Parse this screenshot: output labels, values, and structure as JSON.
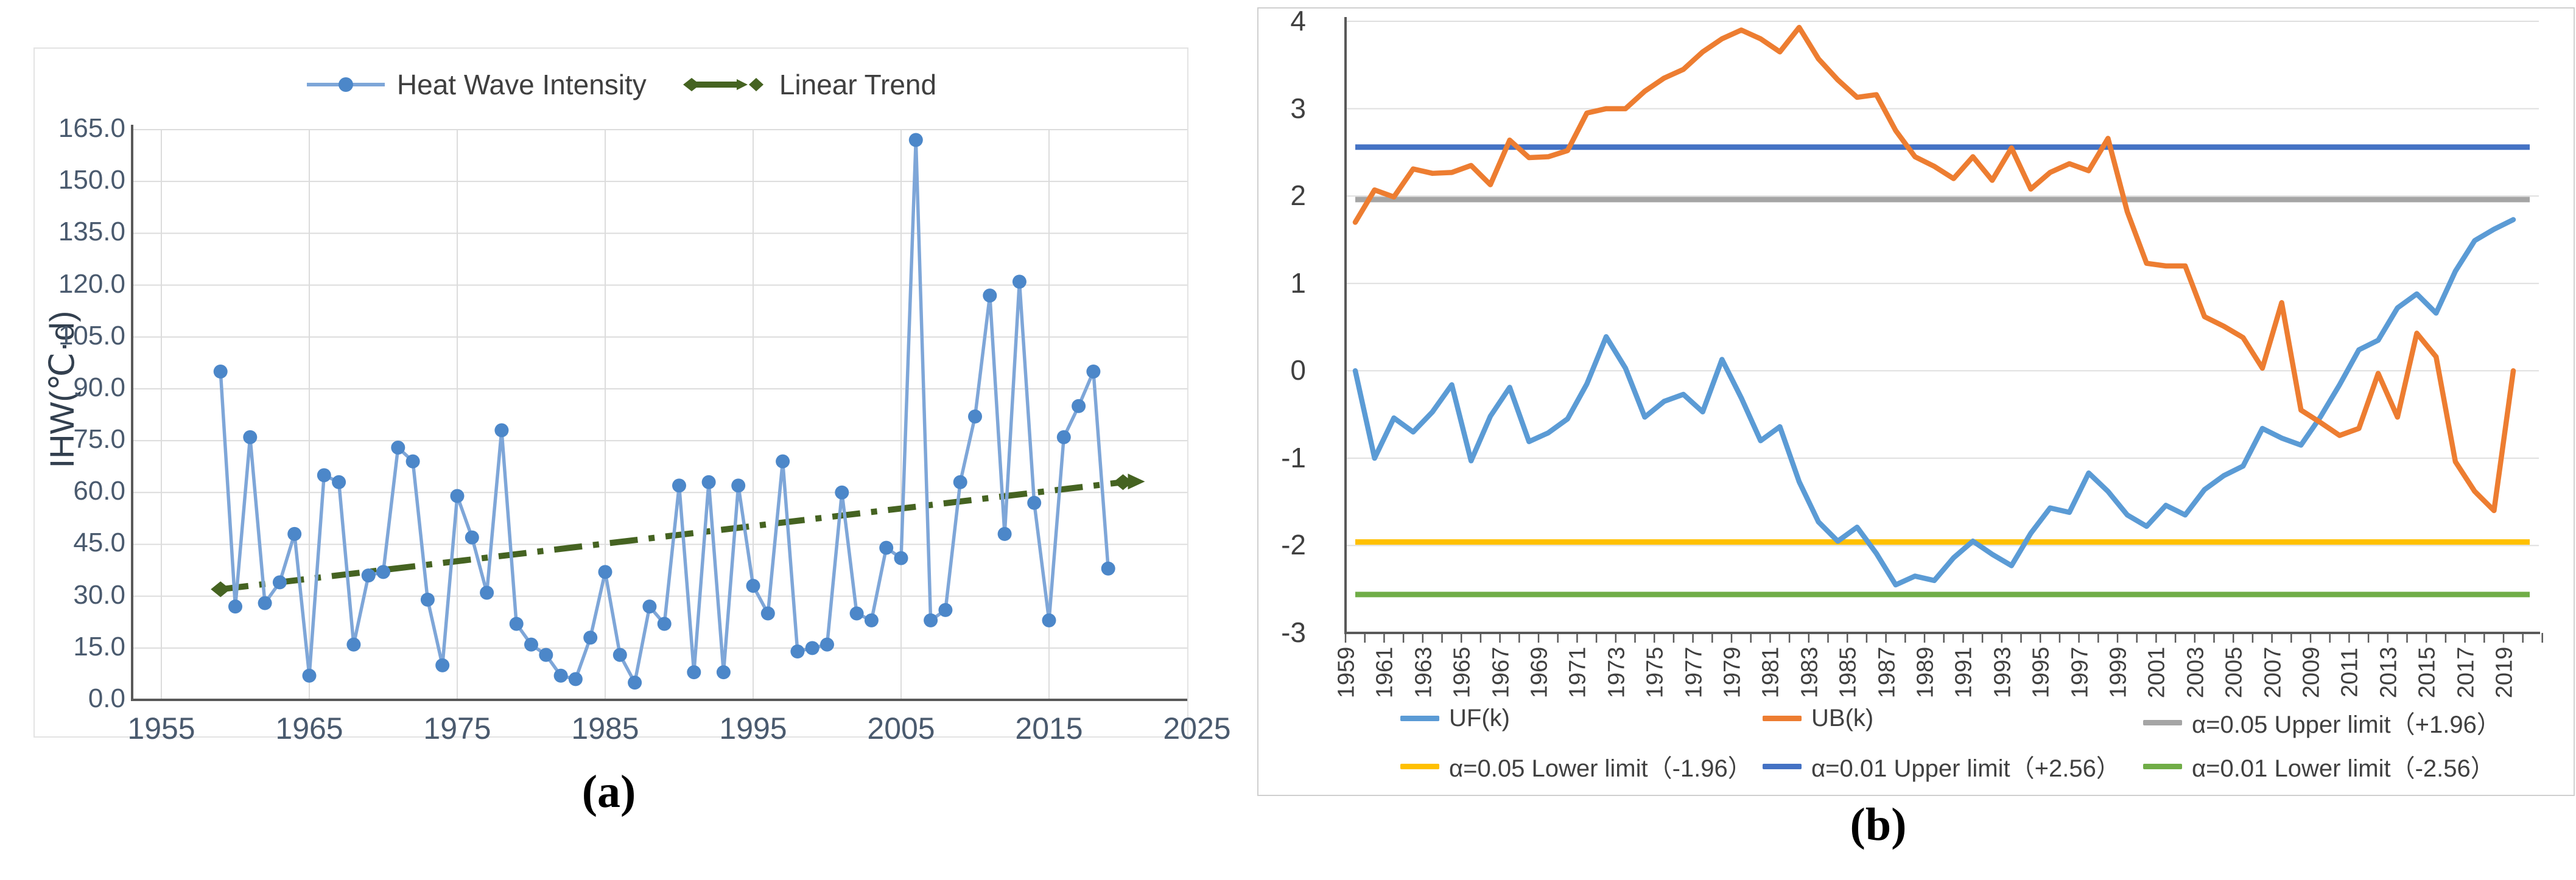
{
  "panel_a": {
    "caption": "(a)",
    "y_axis_label": "IHW(℃·d)",
    "y_tick_labels": [
      "0.0",
      "15.0",
      "30.0",
      "45.0",
      "60.0",
      "75.0",
      "90.0",
      "105.0",
      "120.0",
      "135.0",
      "150.0",
      "165.0"
    ],
    "x_tick_labels": [
      "1955",
      "1965",
      "1975",
      "1985",
      "1995",
      "2005",
      "2015",
      "2025"
    ],
    "legend": [
      {
        "label": "Heat Wave Intensity",
        "line_color": "#7EA6D8",
        "marker_color": "#4C87C9",
        "marker": "circle"
      },
      {
        "label": "Linear Trend",
        "line_color": "#456321",
        "marker": "diamond"
      }
    ]
  },
  "panel_b": {
    "caption": "(b)",
    "y_tick_labels": [
      "4",
      "3",
      "2",
      "1",
      "0",
      "-1",
      "-2",
      "-3"
    ],
    "x_tick_labels": [
      "1959",
      "1961",
      "1963",
      "1965",
      "1967",
      "1969",
      "1971",
      "1973",
      "1975",
      "1977",
      "1979",
      "1981",
      "1983",
      "1985",
      "1987",
      "1989",
      "1991",
      "1993",
      "1995",
      "1997",
      "1999",
      "2001",
      "2003",
      "2005",
      "2007",
      "2009",
      "2011",
      "2013",
      "2015",
      "2017",
      "2019"
    ],
    "legend": [
      {
        "label": "UF(k)",
        "color": "#5B9BD5"
      },
      {
        "label": "UB(k)",
        "color": "#ED7D31"
      },
      {
        "label": "α=0.05 Upper limit（+1.96）",
        "color": "#A5A5A5"
      },
      {
        "label": "α=0.05 Lower limit（-1.96）",
        "color": "#FFC000"
      },
      {
        "label": "α=0.01 Upper limit（+2.56）",
        "color": "#4472C4"
      },
      {
        "label": "α=0.01 Lower limit（-2.56）",
        "color": "#70AD47"
      }
    ]
  },
  "chart_data": [
    {
      "type": "line",
      "title": "",
      "xlabel": "",
      "ylabel": "IHW(℃·d)",
      "xlim": [
        1955,
        2025
      ],
      "ylim": [
        0,
        165
      ],
      "y_step": 15,
      "x_gridline_years": [
        1955,
        1965,
        1975,
        1985,
        1995,
        2005,
        2015
      ],
      "grid": true,
      "legend_position": "top",
      "x": [
        1959,
        1960,
        1961,
        1962,
        1963,
        1964,
        1965,
        1966,
        1967,
        1968,
        1969,
        1970,
        1971,
        1972,
        1973,
        1974,
        1975,
        1976,
        1977,
        1978,
        1979,
        1980,
        1981,
        1982,
        1983,
        1984,
        1985,
        1986,
        1987,
        1988,
        1989,
        1990,
        1991,
        1992,
        1993,
        1994,
        1995,
        1996,
        1997,
        1998,
        1999,
        2000,
        2001,
        2002,
        2003,
        2004,
        2005,
        2006,
        2007,
        2008,
        2009,
        2010,
        2011,
        2012,
        2013,
        2014,
        2015,
        2016,
        2017,
        2018,
        2019
      ],
      "series": [
        {
          "name": "Heat Wave Intensity",
          "color": "#7EA6D8",
          "marker_color": "#4C87C9",
          "values": [
            95,
            27,
            76,
            28,
            34,
            48,
            7,
            65,
            63,
            16,
            36,
            37,
            73,
            69,
            29,
            10,
            59,
            47,
            31,
            78,
            22,
            16,
            13,
            7,
            6,
            18,
            37,
            13,
            5,
            27,
            22,
            62,
            8,
            63,
            8,
            62,
            33,
            25,
            69,
            14,
            15,
            16,
            60,
            25,
            23,
            44,
            41,
            162,
            23,
            26,
            63,
            82,
            117,
            48,
            121,
            57,
            23,
            76,
            85,
            95,
            38
          ]
        },
        {
          "name": "Linear Trend",
          "color": "#456321",
          "style": "dash-dot-arrow",
          "start": {
            "year": 1959,
            "value": 32
          },
          "end": {
            "year": 2020,
            "value": 63
          }
        }
      ]
    },
    {
      "type": "line",
      "title": "",
      "xlabel": "",
      "ylabel": "",
      "xlim": [
        1959,
        2020
      ],
      "ylim": [
        -3,
        4
      ],
      "y_step": 1,
      "grid": true,
      "legend_position": "bottom",
      "x": [
        1959,
        1960,
        1961,
        1962,
        1963,
        1964,
        1965,
        1966,
        1967,
        1968,
        1969,
        1970,
        1971,
        1972,
        1973,
        1974,
        1975,
        1976,
        1977,
        1978,
        1979,
        1980,
        1981,
        1982,
        1983,
        1984,
        1985,
        1986,
        1987,
        1988,
        1989,
        1990,
        1991,
        1992,
        1993,
        1994,
        1995,
        1996,
        1997,
        1998,
        1999,
        2000,
        2001,
        2002,
        2003,
        2004,
        2005,
        2006,
        2007,
        2008,
        2009,
        2010,
        2011,
        2012,
        2013,
        2014,
        2015,
        2016,
        2017,
        2018,
        2019
      ],
      "series": [
        {
          "name": "UF(k)",
          "color": "#5B9BD5",
          "values": [
            0.0,
            -1.0,
            -0.54,
            -0.7,
            -0.47,
            -0.16,
            -1.03,
            -0.52,
            -0.19,
            -0.81,
            -0.71,
            -0.55,
            -0.15,
            0.39,
            0.03,
            -0.53,
            -0.35,
            -0.27,
            -0.47,
            0.13,
            -0.31,
            -0.8,
            -0.64,
            -1.27,
            -1.73,
            -1.95,
            -1.79,
            -2.09,
            -2.45,
            -2.35,
            -2.4,
            -2.14,
            -1.95,
            -2.1,
            -2.23,
            -1.86,
            -1.57,
            -1.62,
            -1.17,
            -1.38,
            -1.65,
            -1.78,
            -1.54,
            -1.65,
            -1.36,
            -1.2,
            -1.09,
            -0.66,
            -0.77,
            -0.85,
            -0.53,
            -0.16,
            0.24,
            0.35,
            0.72,
            0.88,
            0.66,
            1.14,
            1.49,
            1.62,
            1.73
          ]
        },
        {
          "name": "UB(k)",
          "color": "#ED7D31",
          "values": [
            1.7,
            2.07,
            1.99,
            2.31,
            2.26,
            2.27,
            2.35,
            2.13,
            2.64,
            2.44,
            2.45,
            2.52,
            2.95,
            3.0,
            3.0,
            3.2,
            3.35,
            3.45,
            3.65,
            3.8,
            3.9,
            3.8,
            3.65,
            3.93,
            3.57,
            3.33,
            3.13,
            3.16,
            2.75,
            2.45,
            2.34,
            2.2,
            2.45,
            2.18,
            2.55,
            2.08,
            2.27,
            2.37,
            2.29,
            2.66,
            1.82,
            1.23,
            1.2,
            1.2,
            0.62,
            0.51,
            0.38,
            0.03,
            0.78,
            -0.45,
            -0.59,
            -0.74,
            -0.66,
            -0.03,
            -0.53,
            0.43,
            0.16,
            -1.04,
            -1.38,
            -1.6,
            0.0
          ]
        }
      ],
      "limit_lines": [
        {
          "name": "α=0.05 Upper limit（+1.96）",
          "value": 1.96,
          "color": "#A5A5A5"
        },
        {
          "name": "α=0.05 Lower limit（-1.96）",
          "value": -1.96,
          "color": "#FFC000"
        },
        {
          "name": "α=0.01 Upper limit（+2.56）",
          "value": 2.56,
          "color": "#4472C4"
        },
        {
          "name": "α=0.01 Lower limit（-2.56）",
          "value": -2.56,
          "color": "#70AD47"
        }
      ]
    }
  ]
}
